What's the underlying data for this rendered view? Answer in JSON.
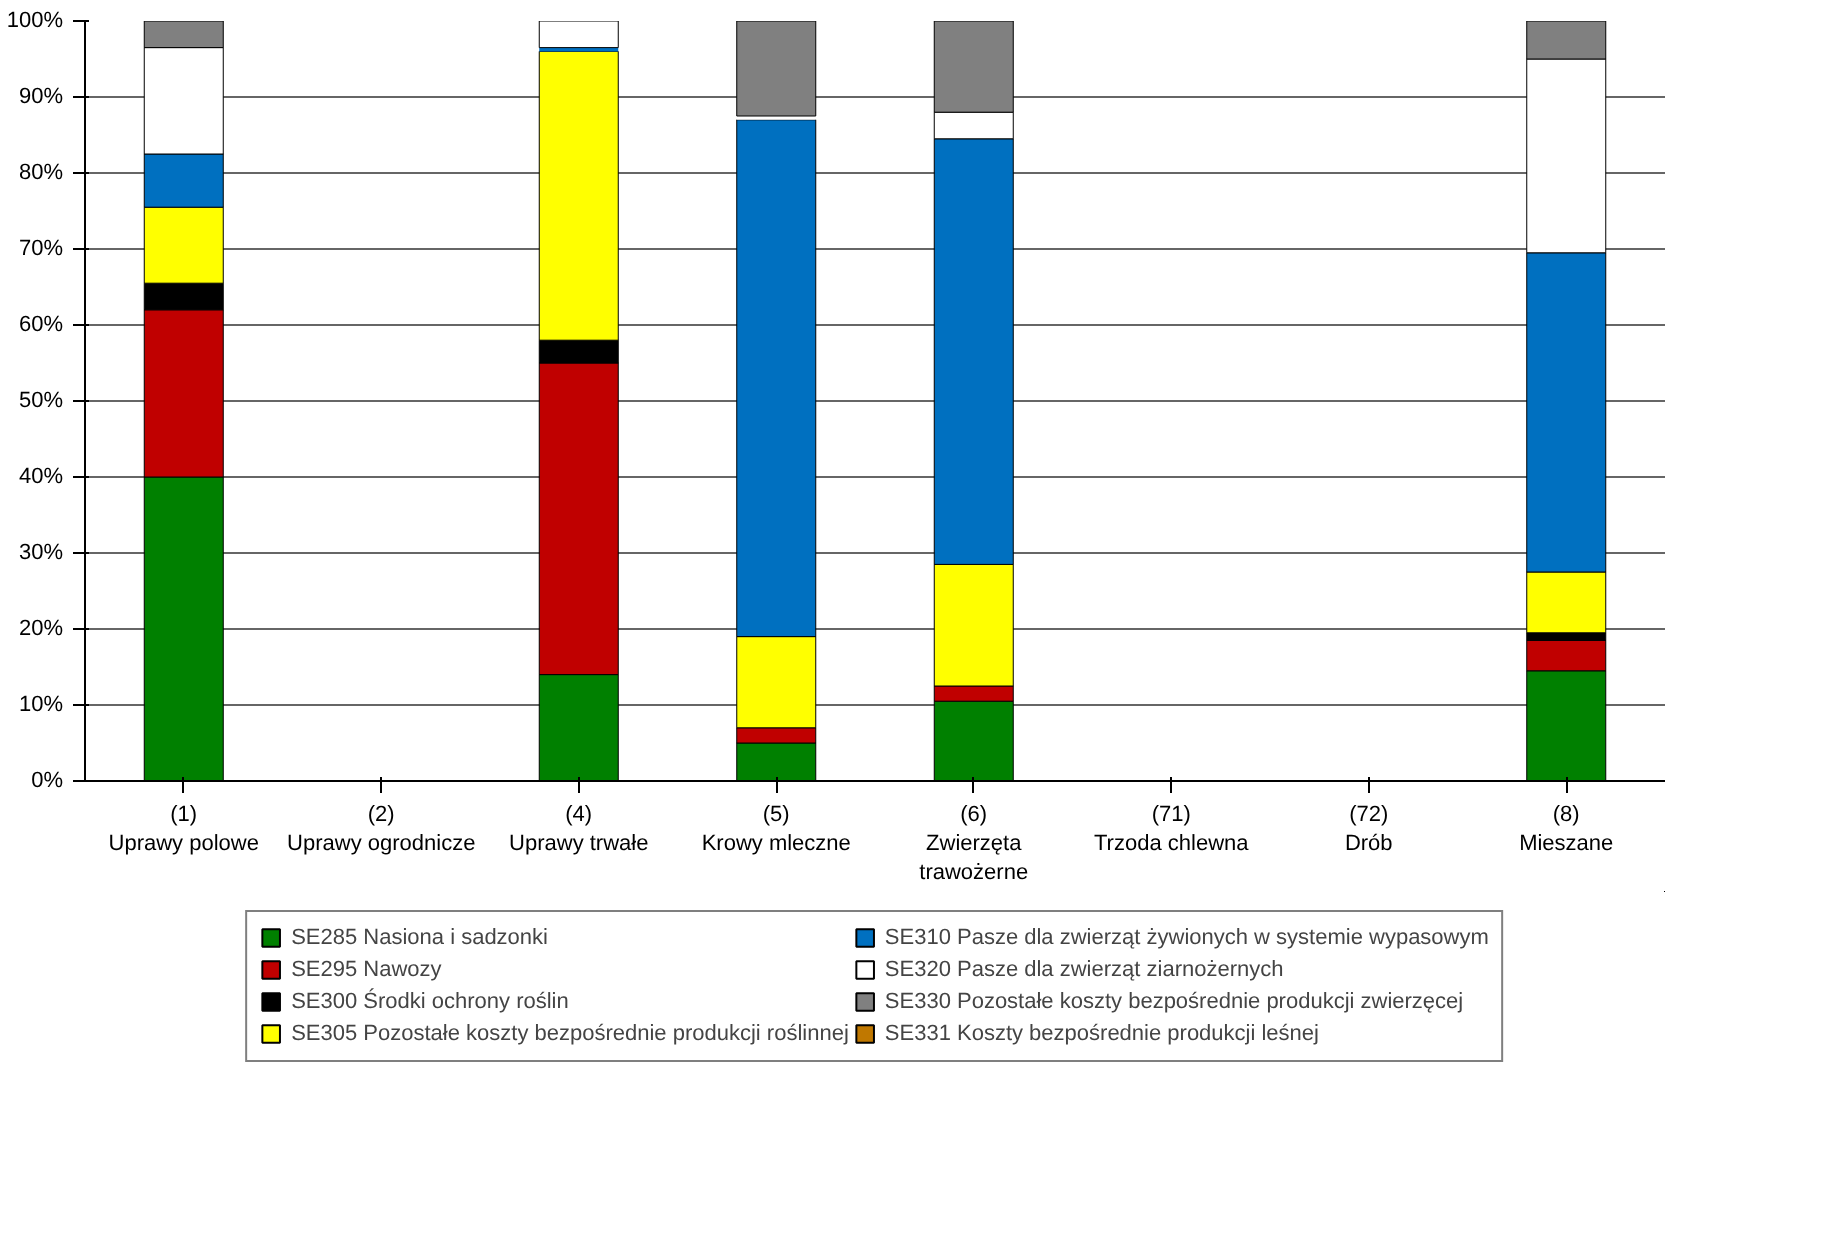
{
  "chart_data": {
    "type": "bar",
    "stacked": true,
    "categories": [
      "(1)\nUprawy polowe",
      "(2)\nUprawy ogrodnicze",
      "(4)\nUprawy trwałe",
      "(5)\nKrowy mleczne",
      "(6)\nZwierzęta trawożerne",
      "(71)\nTrzoda chlewna",
      "(72)\nDrób",
      "(8)\nMieszane"
    ],
    "series": [
      {
        "name": "SE285 Nasiona i sadzonki",
        "color": "#008000",
        "values": [
          40,
          0,
          14,
          5,
          10.5,
          0,
          0,
          14.5
        ]
      },
      {
        "name": "SE295 Nawozy",
        "color": "#c00000",
        "values": [
          22,
          0,
          41,
          2,
          2,
          0,
          0,
          4
        ]
      },
      {
        "name": "SE300 Środki ochrony roślin",
        "color": "#000000",
        "values": [
          3.5,
          0,
          3,
          0,
          0,
          0,
          0,
          1
        ]
      },
      {
        "name": "SE305 Pozostałe koszty bezpośrednie produkcji roślinnej",
        "color": "#ffff00",
        "values": [
          10,
          0,
          38,
          12,
          16,
          0,
          0,
          8
        ]
      },
      {
        "name": "SE310 Pasze dla zwierząt żywionych w systemie wypasowym",
        "color": "#0070c0",
        "values": [
          7,
          0,
          0.5,
          68,
          56,
          0,
          0,
          42
        ]
      },
      {
        "name": "SE320 Pasze dla zwierząt ziarnożernych",
        "color": "#ffffff",
        "values": [
          14,
          0,
          3.5,
          0.5,
          3.5,
          0,
          0,
          25.5
        ]
      },
      {
        "name": "SE330 Pozostałe koszty bezpośrednie produkcji zwierzęcej",
        "color": "#808080",
        "values": [
          3.5,
          0,
          0,
          12.5,
          12,
          0,
          0,
          5
        ]
      },
      {
        "name": "SE331 Koszty bezpośrednie produkcji leśnej",
        "color": "#c07800",
        "values": [
          0,
          0,
          0,
          0,
          0,
          0,
          0,
          0
        ]
      }
    ],
    "ylim": [
      0,
      100
    ],
    "yticks": [
      {
        "value": 0,
        "label": "0%"
      },
      {
        "value": 10,
        "label": "10%"
      },
      {
        "value": 20,
        "label": "20%"
      },
      {
        "value": 30,
        "label": "30%"
      },
      {
        "value": 40,
        "label": "40%"
      },
      {
        "value": 50,
        "label": "50%"
      },
      {
        "value": 60,
        "label": "60%"
      },
      {
        "value": 70,
        "label": "70%"
      },
      {
        "value": 80,
        "label": "80%"
      },
      {
        "value": 90,
        "label": "90%"
      },
      {
        "value": 100,
        "label": "100%"
      }
    ],
    "grid": "y",
    "legend": "bottom"
  }
}
